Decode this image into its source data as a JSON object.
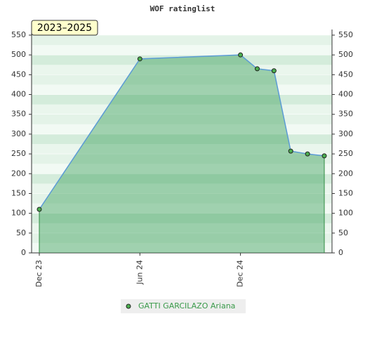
{
  "chart_data": {
    "type": "line",
    "title": "WOF ratinglist",
    "badge": "2023–2025",
    "x": [
      0,
      6,
      12,
      13,
      14,
      15,
      16,
      17
    ],
    "xlim": [
      0,
      17
    ],
    "xticks": [
      {
        "value": 0,
        "label": "Dec 23"
      },
      {
        "value": 6,
        "label": "Jun 24"
      },
      {
        "value": 12,
        "label": "Dec 24"
      }
    ],
    "series": [
      {
        "name": "GATTI GARCILAZO Ariana",
        "color": "#5b9bd5",
        "values": [
          110,
          490,
          500,
          465,
          460,
          257,
          250,
          245
        ]
      }
    ],
    "ylim": [
      0,
      550
    ],
    "yticks": [
      0,
      50,
      100,
      150,
      200,
      250,
      300,
      350,
      400,
      450,
      500,
      550
    ],
    "grid": true
  }
}
